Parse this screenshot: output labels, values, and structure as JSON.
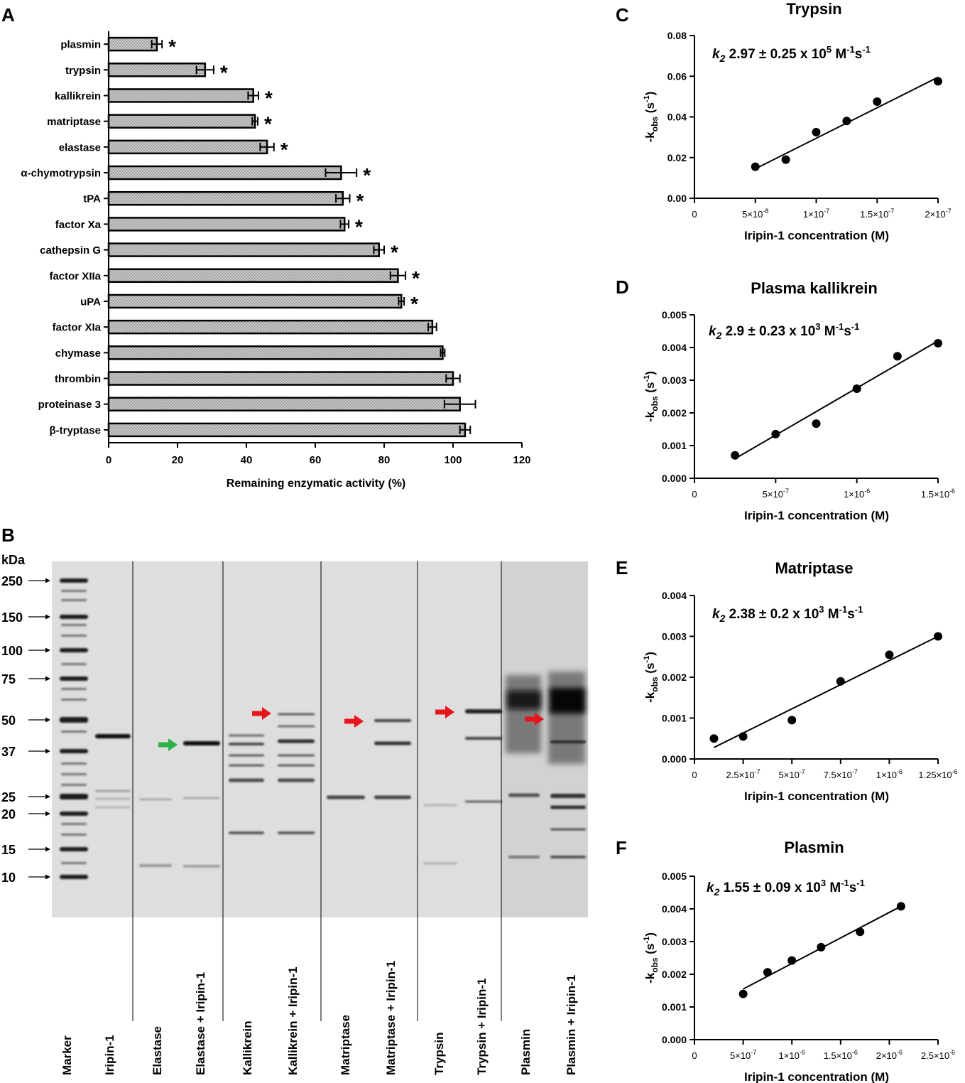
{
  "panels": {
    "A": "A",
    "B": "B",
    "C": "C",
    "D": "D",
    "E": "E",
    "F": "F"
  },
  "chart_data": [
    {
      "id": "A",
      "type": "bar",
      "orientation": "horizontal",
      "title": "",
      "xlabel": "Remaining enzymatic activity (%)",
      "ylabel": "",
      "xlim": [
        0,
        120
      ],
      "ticks": [
        "0",
        "20",
        "40",
        "60",
        "80",
        "100",
        "120"
      ],
      "categories": [
        "plasmin",
        "trypsin",
        "kallikrein",
        "matriptase",
        "elastase",
        "α-chymotrypsin",
        "tPA",
        "factor Xa",
        "cathepsin G",
        "factor XIIa",
        "uPA",
        "factor XIa",
        "chymase",
        "thrombin",
        "proteinase 3",
        "β-tryptase"
      ],
      "values": [
        14,
        28,
        42,
        42.5,
        46,
        67.5,
        68,
        68.5,
        78.5,
        84,
        85,
        94,
        97,
        100,
        102,
        103.5
      ],
      "errors": [
        1.5,
        2.5,
        1.5,
        0.8,
        2,
        4.5,
        2,
        1.2,
        1.5,
        2.2,
        0.8,
        1.2,
        0.6,
        2,
        4.5,
        1.5
      ],
      "significant": [
        true,
        true,
        true,
        true,
        true,
        true,
        true,
        true,
        true,
        true,
        true,
        false,
        false,
        false,
        false,
        false
      ],
      "sig_mark": "*"
    },
    {
      "id": "C",
      "type": "scatter",
      "title": "Trypsin",
      "annotation": {
        "k": "k",
        "sub": "2",
        "main": " 2.97 ± 0.25 x 10",
        "exp": "5",
        "unit": " M",
        "u1": "-1",
        "s": "s",
        "u2": "-1"
      },
      "xlabel": "Iripin-1 concentration  (M)",
      "ylabel": {
        "main": "-k",
        "sub": "obs",
        "unit": "  (s",
        "exp": "-1",
        "close": ")"
      },
      "xlim": [
        0,
        2e-07
      ],
      "ylim": [
        0,
        0.08
      ],
      "xticks": [
        {
          "v": 0,
          "t": "0"
        },
        {
          "v": 5e-08,
          "t": "5×10",
          "e": "-8"
        },
        {
          "v": 1e-07,
          "t": "1×10",
          "e": "-7"
        },
        {
          "v": 1.5e-07,
          "t": "1.5×10",
          "e": "-7"
        },
        {
          "v": 2e-07,
          "t": "2×10",
          "e": "-7"
        }
      ],
      "yticks": [
        {
          "v": 0,
          "t": "0.00"
        },
        {
          "v": 0.02,
          "t": "0.02"
        },
        {
          "v": 0.04,
          "t": "0.04"
        },
        {
          "v": 0.06,
          "t": "0.06"
        },
        {
          "v": 0.08,
          "t": "0.08"
        }
      ],
      "points": [
        [
          5e-08,
          0.0155
        ],
        [
          7.5e-08,
          0.019
        ],
        [
          1e-07,
          0.0325
        ],
        [
          1.25e-07,
          0.038
        ],
        [
          1.5e-07,
          0.0475
        ],
        [
          2e-07,
          0.0575
        ]
      ],
      "fit": [
        [
          5e-08,
          0.0145
        ],
        [
          2e-07,
          0.0595
        ]
      ]
    },
    {
      "id": "D",
      "type": "scatter",
      "title": "Plasma kallikrein",
      "annotation": {
        "k": "k",
        "sub": "2",
        "main": " 2.9 ± 0.23 x 10",
        "exp": "3",
        "unit": " M",
        "u1": "-1",
        "s": "s",
        "u2": "-1"
      },
      "xlabel": "Iripin-1 concentration  (M)",
      "ylabel": {
        "main": "-k",
        "sub": "obs",
        "unit": "  (s",
        "exp": "-1",
        "close": ")"
      },
      "xlim": [
        0,
        1.5e-06
      ],
      "ylim": [
        0,
        0.005
      ],
      "xticks": [
        {
          "v": 0,
          "t": "0"
        },
        {
          "v": 5e-07,
          "t": "5×10",
          "e": "-7"
        },
        {
          "v": 1e-06,
          "t": "1×10",
          "e": "-6"
        },
        {
          "v": 1.5e-06,
          "t": "1.5×10",
          "e": "-6"
        }
      ],
      "yticks": [
        {
          "v": 0,
          "t": "0.000"
        },
        {
          "v": 0.001,
          "t": "0.001"
        },
        {
          "v": 0.002,
          "t": "0.002"
        },
        {
          "v": 0.003,
          "t": "0.003"
        },
        {
          "v": 0.004,
          "t": "0.004"
        },
        {
          "v": 0.005,
          "t": "0.005"
        }
      ],
      "points": [
        [
          2.5e-07,
          0.0007
        ],
        [
          5e-07,
          0.00135
        ],
        [
          7.5e-07,
          0.00167
        ],
        [
          1e-06,
          0.00274
        ],
        [
          1.25e-06,
          0.00373
        ],
        [
          1.5e-06,
          0.00413
        ]
      ],
      "fit": [
        [
          2.5e-07,
          0.0006
        ],
        [
          1.5e-06,
          0.0042
        ]
      ]
    },
    {
      "id": "E",
      "type": "scatter",
      "title": "Matriptase",
      "annotation": {
        "k": "k",
        "sub": "2",
        "main": " 2.38 ± 0.2 x 10",
        "exp": "3",
        "unit": " M",
        "u1": "-1",
        "s": "s",
        "u2": "-1"
      },
      "xlabel": "Iripin-1 concentration  (M)",
      "ylabel": {
        "main": "-k",
        "sub": "obs",
        "unit": "  (s",
        "exp": "-1",
        "close": ")"
      },
      "xlim": [
        0,
        1.25e-06
      ],
      "ylim": [
        0,
        0.004
      ],
      "xticks": [
        {
          "v": 0,
          "t": "0"
        },
        {
          "v": 2.5e-07,
          "t": "2.5×10",
          "e": "-7"
        },
        {
          "v": 5e-07,
          "t": "5×10",
          "e": "-7"
        },
        {
          "v": 7.5e-07,
          "t": "7.5×10",
          "e": "-7"
        },
        {
          "v": 1e-06,
          "t": "1×10",
          "e": "-6"
        },
        {
          "v": 1.25e-06,
          "t": "1.25×10",
          "e": "-6"
        }
      ],
      "yticks": [
        {
          "v": 0,
          "t": "0.000"
        },
        {
          "v": 0.001,
          "t": "0.001"
        },
        {
          "v": 0.002,
          "t": "0.002"
        },
        {
          "v": 0.003,
          "t": "0.003"
        },
        {
          "v": 0.004,
          "t": "0.004"
        }
      ],
      "points": [
        [
          1e-07,
          0.0005
        ],
        [
          2.5e-07,
          0.00055
        ],
        [
          5e-07,
          0.00095
        ],
        [
          7.5e-07,
          0.0019
        ],
        [
          1e-06,
          0.00255
        ],
        [
          1.25e-06,
          0.003
        ]
      ],
      "fit": [
        [
          1e-07,
          0.00028
        ],
        [
          1.25e-06,
          0.003
        ]
      ]
    },
    {
      "id": "F",
      "type": "scatter",
      "title": "Plasmin",
      "annotation": {
        "k": "k",
        "sub": "2",
        "main": " 1.55 ± 0.09 x 10",
        "exp": "3",
        "unit": "  M",
        "u1": "-1",
        "s": "s",
        "u2": "-1"
      },
      "xlabel": "Iripin-1 concentration  (M)",
      "ylabel": {
        "main": "-k",
        "sub": "obs",
        "unit": "  (s",
        "exp": "-1",
        "close": ")"
      },
      "xlim": [
        0,
        2.5e-06
      ],
      "ylim": [
        0,
        0.005
      ],
      "xticks": [
        {
          "v": 0,
          "t": "0"
        },
        {
          "v": 5e-07,
          "t": "5×10",
          "e": "-7"
        },
        {
          "v": 1e-06,
          "t": "1×10",
          "e": "-6"
        },
        {
          "v": 1.5e-06,
          "t": "1.5×10",
          "e": "-6"
        },
        {
          "v": 2e-06,
          "t": "2×10",
          "e": "-6"
        },
        {
          "v": 2.5e-06,
          "t": "2.5×10",
          "e": "-6"
        }
      ],
      "yticks": [
        {
          "v": 0,
          "t": "0.000"
        },
        {
          "v": 0.001,
          "t": "0.001"
        },
        {
          "v": 0.002,
          "t": "0.002"
        },
        {
          "v": 0.003,
          "t": "0.003"
        },
        {
          "v": 0.004,
          "t": "0.004"
        },
        {
          "v": 0.005,
          "t": "0.005"
        }
      ],
      "points": [
        [
          5e-07,
          0.0014
        ],
        [
          7.5e-07,
          0.00206
        ],
        [
          1e-06,
          0.00242
        ],
        [
          1.3e-06,
          0.00283
        ],
        [
          1.7e-06,
          0.0033
        ],
        [
          2.12e-06,
          0.00408
        ]
      ],
      "fit": [
        [
          5e-07,
          0.00155
        ],
        [
          2.12e-06,
          0.00408
        ]
      ]
    }
  ],
  "gel": {
    "kda_label": "kDa",
    "markers": [
      "250",
      "150",
      "100",
      "75",
      "50",
      "37",
      "25",
      "20",
      "15",
      "10"
    ],
    "lanes": [
      "Marker",
      "Iripin-1",
      "Elastase",
      "Elastase + Iripin-1",
      "Kallikrein",
      "Kallikrein + Iripin-1",
      "Matriptase",
      "Matriptase + Iripin-1",
      "Trypsin",
      "Trypsin + Iripin-1",
      "Plasmin",
      "Plasmin + Iripin-1"
    ],
    "arrow_colors": {
      "green": "#2bb34a",
      "red": "#e8141c"
    }
  }
}
